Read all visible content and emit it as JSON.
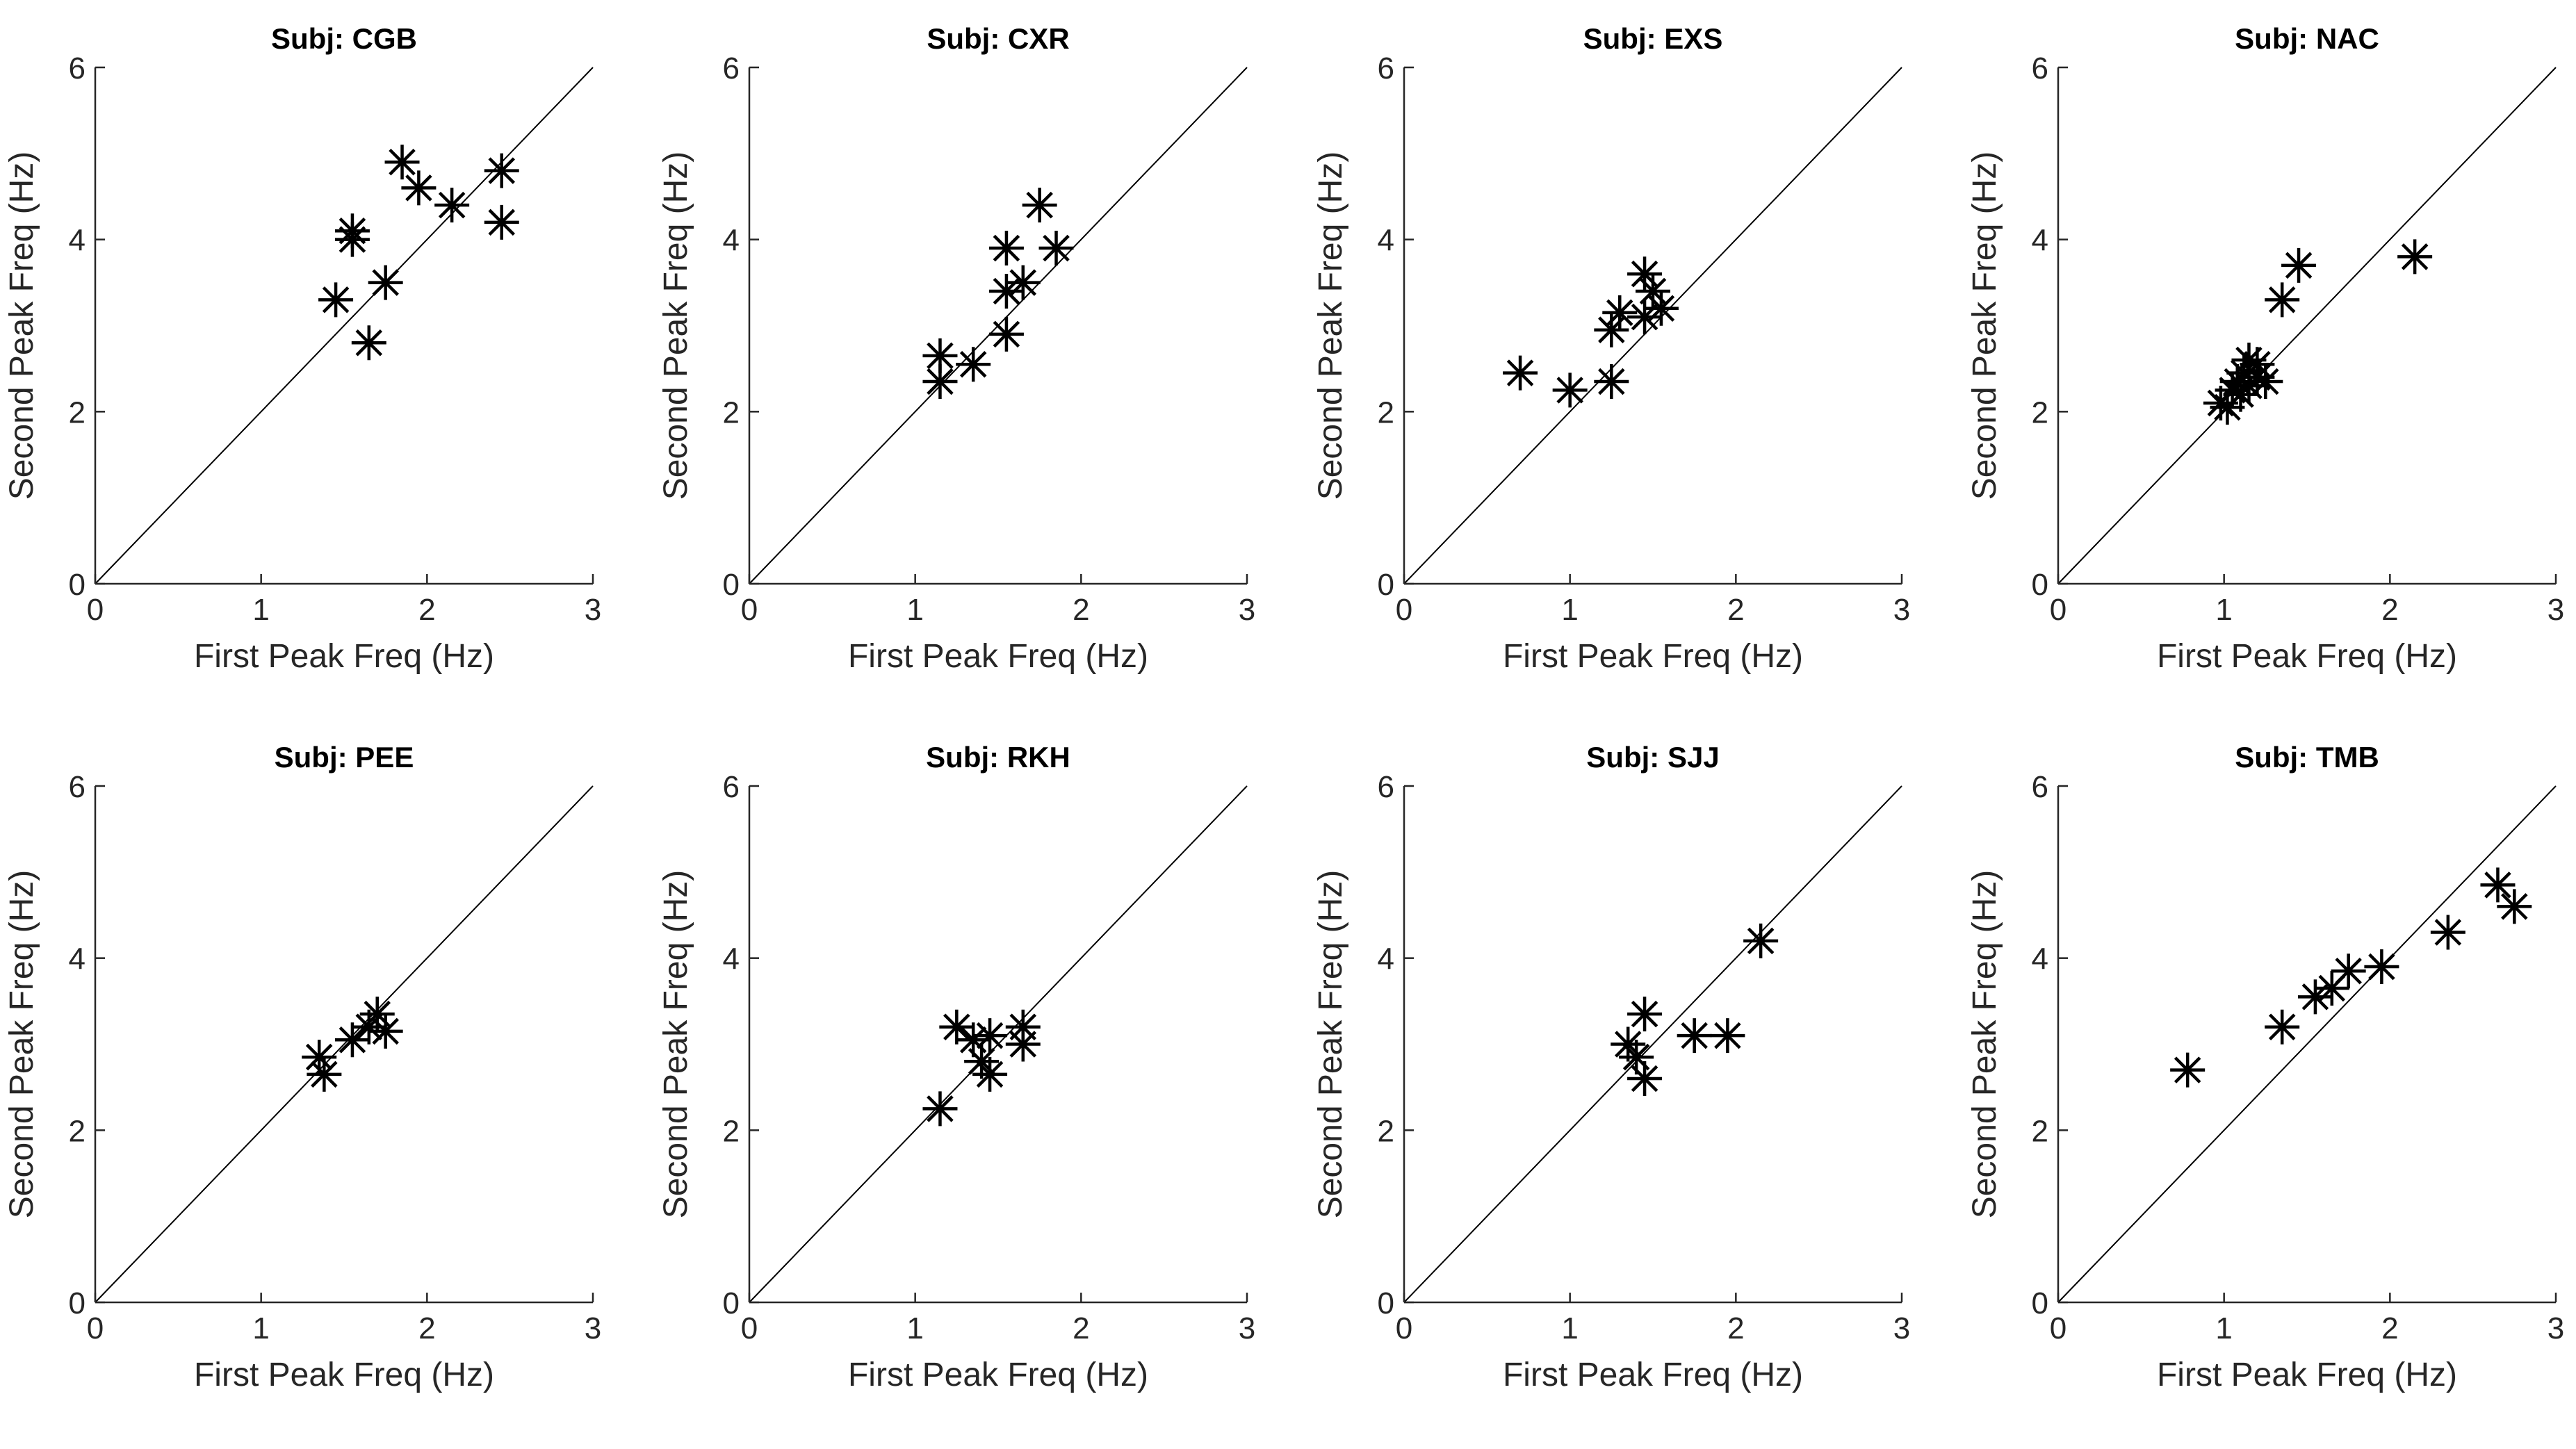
{
  "colors": {
    "background": "#ffffff",
    "axis": "#262626",
    "marker": "#000000",
    "reference_line": "#000000"
  },
  "chart_data": [
    {
      "type": "scatter",
      "title": "Subj: CGB",
      "xlabel": "First Peak Freq (Hz)",
      "ylabel": "Second Peak Freq (Hz)",
      "xlim": [
        0,
        3
      ],
      "ylim": [
        0,
        6
      ],
      "xticks": [
        "0",
        "1",
        "2",
        "3"
      ],
      "yticks": [
        "0",
        "2",
        "4",
        "6"
      ],
      "marker": "asterisk",
      "reference_line": "y = 2x",
      "points": [
        [
          1.45,
          3.3
        ],
        [
          1.55,
          4.1
        ],
        [
          1.55,
          4.0
        ],
        [
          1.65,
          2.8
        ],
        [
          1.75,
          3.5
        ],
        [
          1.85,
          4.9
        ],
        [
          1.95,
          4.6
        ],
        [
          2.15,
          4.4
        ],
        [
          2.45,
          4.8
        ],
        [
          2.45,
          4.2
        ]
      ]
    },
    {
      "type": "scatter",
      "title": "Subj: CXR",
      "xlabel": "First Peak Freq (Hz)",
      "ylabel": "Second Peak Freq (Hz)",
      "xlim": [
        0,
        3
      ],
      "ylim": [
        0,
        6
      ],
      "xticks": [
        "0",
        "1",
        "2",
        "3"
      ],
      "yticks": [
        "0",
        "2",
        "4",
        "6"
      ],
      "marker": "asterisk",
      "reference_line": "y = 2x",
      "points": [
        [
          1.15,
          2.65
        ],
        [
          1.15,
          2.35
        ],
        [
          1.35,
          2.55
        ],
        [
          1.55,
          3.9
        ],
        [
          1.55,
          3.4
        ],
        [
          1.55,
          2.9
        ],
        [
          1.65,
          3.5
        ],
        [
          1.75,
          4.4
        ],
        [
          1.85,
          3.9
        ]
      ]
    },
    {
      "type": "scatter",
      "title": "Subj: EXS",
      "xlabel": "First Peak Freq (Hz)",
      "ylabel": "Second Peak Freq (Hz)",
      "xlim": [
        0,
        3
      ],
      "ylim": [
        0,
        6
      ],
      "xticks": [
        "0",
        "1",
        "2",
        "3"
      ],
      "yticks": [
        "0",
        "2",
        "4",
        "6"
      ],
      "marker": "asterisk",
      "reference_line": "y = 2x",
      "points": [
        [
          0.7,
          2.45
        ],
        [
          1.0,
          2.25
        ],
        [
          1.25,
          2.35
        ],
        [
          1.25,
          2.95
        ],
        [
          1.3,
          3.15
        ],
        [
          1.45,
          3.6
        ],
        [
          1.45,
          3.1
        ],
        [
          1.5,
          3.4
        ],
        [
          1.55,
          3.2
        ]
      ]
    },
    {
      "type": "scatter",
      "title": "Subj: NAC",
      "xlabel": "First Peak Freq (Hz)",
      "ylabel": "Second Peak Freq (Hz)",
      "xlim": [
        0,
        3
      ],
      "ylim": [
        0,
        6
      ],
      "xticks": [
        "0",
        "1",
        "2",
        "3"
      ],
      "yticks": [
        "0",
        "2",
        "4",
        "6"
      ],
      "marker": "asterisk",
      "reference_line": "y = 2x",
      "points": [
        [
          0.98,
          2.1
        ],
        [
          1.02,
          2.05
        ],
        [
          1.05,
          2.25
        ],
        [
          1.08,
          2.35
        ],
        [
          1.1,
          2.2
        ],
        [
          1.12,
          2.45
        ],
        [
          1.15,
          2.3
        ],
        [
          1.15,
          2.6
        ],
        [
          1.2,
          2.4
        ],
        [
          1.2,
          2.55
        ],
        [
          1.25,
          2.35
        ],
        [
          1.35,
          3.3
        ],
        [
          1.45,
          3.7
        ],
        [
          2.15,
          3.8
        ]
      ]
    },
    {
      "type": "scatter",
      "title": "Subj: PEE",
      "xlabel": "First Peak Freq (Hz)",
      "ylabel": "Second Peak Freq (Hz)",
      "xlim": [
        0,
        3
      ],
      "ylim": [
        0,
        6
      ],
      "xticks": [
        "0",
        "1",
        "2",
        "3"
      ],
      "yticks": [
        "0",
        "2",
        "4",
        "6"
      ],
      "marker": "asterisk",
      "reference_line": "y = 2x",
      "points": [
        [
          1.35,
          2.85
        ],
        [
          1.38,
          2.65
        ],
        [
          1.55,
          3.05
        ],
        [
          1.65,
          3.2
        ],
        [
          1.7,
          3.35
        ],
        [
          1.75,
          3.15
        ]
      ]
    },
    {
      "type": "scatter",
      "title": "Subj: RKH",
      "xlabel": "First Peak Freq (Hz)",
      "ylabel": "Second Peak Freq (Hz)",
      "xlim": [
        0,
        3
      ],
      "ylim": [
        0,
        6
      ],
      "xticks": [
        "0",
        "1",
        "2",
        "3"
      ],
      "yticks": [
        "0",
        "2",
        "4",
        "6"
      ],
      "marker": "asterisk",
      "reference_line": "y = 2x",
      "points": [
        [
          1.15,
          2.25
        ],
        [
          1.25,
          3.2
        ],
        [
          1.35,
          3.05
        ],
        [
          1.4,
          2.8
        ],
        [
          1.45,
          2.65
        ],
        [
          1.45,
          3.1
        ],
        [
          1.65,
          3.2
        ],
        [
          1.65,
          3.0
        ]
      ]
    },
    {
      "type": "scatter",
      "title": "Subj: SJJ",
      "xlabel": "First Peak Freq (Hz)",
      "ylabel": "Second Peak Freq (Hz)",
      "xlim": [
        0,
        3
      ],
      "ylim": [
        0,
        6
      ],
      "xticks": [
        "0",
        "1",
        "2",
        "3"
      ],
      "yticks": [
        "0",
        "2",
        "4",
        "6"
      ],
      "marker": "asterisk",
      "reference_line": "y = 2x",
      "points": [
        [
          1.35,
          3.0
        ],
        [
          1.4,
          2.85
        ],
        [
          1.45,
          3.35
        ],
        [
          1.45,
          2.6
        ],
        [
          1.75,
          3.1
        ],
        [
          1.95,
          3.1
        ],
        [
          2.15,
          4.2
        ]
      ]
    },
    {
      "type": "scatter",
      "title": "Subj: TMB",
      "xlabel": "First Peak Freq (Hz)",
      "ylabel": "Second Peak Freq (Hz)",
      "xlim": [
        0,
        3
      ],
      "ylim": [
        0,
        6
      ],
      "xticks": [
        "0",
        "1",
        "2",
        "3"
      ],
      "yticks": [
        "0",
        "2",
        "4",
        "6"
      ],
      "marker": "asterisk",
      "reference_line": "y = 2x",
      "points": [
        [
          0.78,
          2.7
        ],
        [
          1.35,
          3.2
        ],
        [
          1.55,
          3.55
        ],
        [
          1.65,
          3.65
        ],
        [
          1.75,
          3.85
        ],
        [
          1.95,
          3.9
        ],
        [
          2.35,
          4.3
        ],
        [
          2.65,
          4.85
        ],
        [
          2.75,
          4.6
        ]
      ]
    }
  ]
}
